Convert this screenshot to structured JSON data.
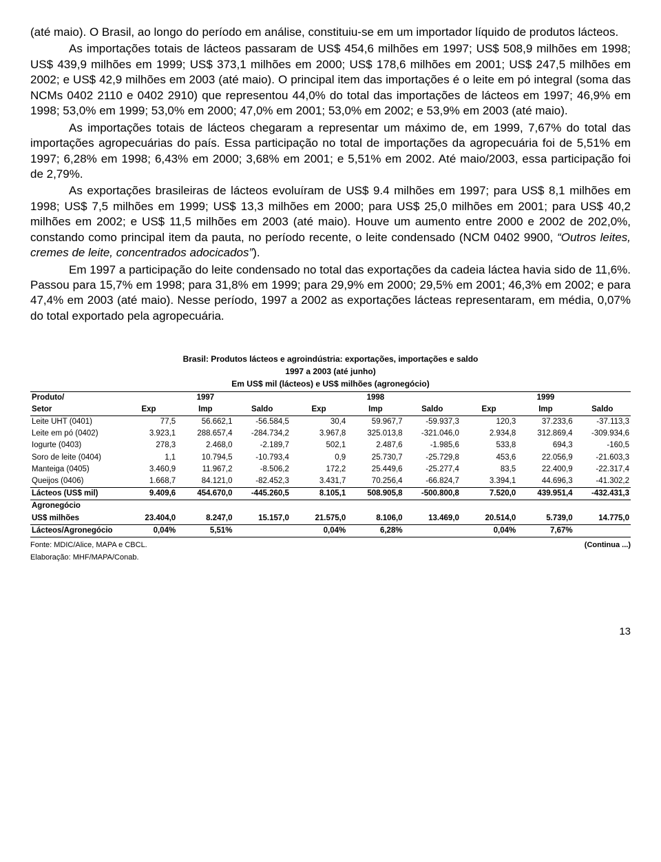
{
  "paragraphs": {
    "p1": "(até maio). O Brasil, ao longo do período em análise, constituiu-se em um importador líquido de produtos lácteos.",
    "p2": "As importações totais de lácteos passaram de US$ 454,6 milhões em 1997; US$ 508,9 milhões em 1998; US$ 439,9 milhões em 1999; US$ 373,1 milhões em 2000; US$ 178,6 milhões em 2001; US$ 247,5 milhões em 2002; e US$ 42,9 milhões em 2003 (até maio).  O principal item das importações é o leite em pó integral (soma das NCMs 0402 2110 e 0402 2910) que  representou 44,0% do total das importações de lácteos em 1997; 46,9% em 1998; 53,0% em 1999; 53,0% em 2000; 47,0% em 2001; 53,0% em 2002; e 53,9% em 2003 (até maio).",
    "p3": "As importações totais de lácteos chegaram a representar um máximo de, em 1999, 7,67% do total das importações agropecuárias do país. Essa participação no total de importações da agropecuária foi de 5,51% em 1997; 6,28% em 1998; 6,43% em 2000; 3,68% em 2001; e 5,51% em 2002. Até maio/2003, essa participação foi de 2,79%.",
    "p4a": "As exportações brasileiras de lácteos evoluíram de US$ 9.4 milhões em 1997; para US$ 8,1 milhões em 1998; US$ 7,5 milhões em 1999; US$ 13,3 milhões em 2000; para US$ 25,0 milhões em 2001;  para US$ 40,2 milhões em 2002; e US$ 11,5 milhões em 2003 (até maio). Houve um aumento entre 2000 e 2002 de 202,0%, constando como principal item da pauta, no período recente, o leite condensado (NCM 0402 9900, ",
    "p4b": "“Outros leites, cremes de leite, concentrados adocicados”",
    "p4c": ").",
    "p5": "Em 1997 a participação do leite condensado no total das exportações da cadeia láctea havia sido  de 11,6%. Passou para 15,7% em 1998; para 31,8% em 1999; para 29,9% em 2000;  29,5% em 2001;  46,3% em 2002; e para 47,4% em 2003 (até maio). Nesse período, 1997 a 2002 as exportações lácteas representaram, em média, 0,07% do total exportado pela agropecuária."
  },
  "table": {
    "title": "Brasil: Produtos lácteos e agroindústria: exportações, importações e saldo",
    "period": "1997 a 2003 (até junho)",
    "unit": "Em US$ mil (lácteos) e US$ milhões (agronegócio)",
    "head_prod1": "Produto/",
    "head_prod2": "Setor",
    "years": [
      "1997",
      "1998",
      "1999"
    ],
    "cols": [
      "Exp",
      "Imp",
      "Saldo"
    ],
    "rows": [
      {
        "label": "Leite UHT (0401)",
        "v": [
          "77,5",
          "56.662,1",
          "-56.584,5",
          "30,4",
          "59.967,7",
          "-59.937,3",
          "120,3",
          "37.233,6",
          "-37.113,3"
        ]
      },
      {
        "label": "Leite em pó (0402)",
        "v": [
          "3.923,1",
          "288.657,4",
          "-284.734,2",
          "3.967,8",
          "325.013,8",
          "-321.046,0",
          "2.934,8",
          "312.869,4",
          "-309.934,6"
        ]
      },
      {
        "label": "Iogurte (0403)",
        "v": [
          "278,3",
          "2.468,0",
          "-2.189,7",
          "502,1",
          "2.487,6",
          "-1.985,6",
          "533,8",
          "694,3",
          "-160,5"
        ]
      },
      {
        "label": "Soro de leite (0404)",
        "v": [
          "1,1",
          "10.794,5",
          "-10.793,4",
          "0,9",
          "25.730,7",
          "-25.729,8",
          "453,6",
          "22.056,9",
          "-21.603,3"
        ]
      },
      {
        "label": "Manteiga (0405)",
        "v": [
          "3.460,9",
          "11.967,2",
          "-8.506,2",
          "172,2",
          "25.449,6",
          "-25.277,4",
          "83,5",
          "22.400,9",
          "-22.317,4"
        ]
      },
      {
        "label": "Queijos (0406)",
        "v": [
          "1.668,7",
          "84.121,0",
          "-82.452,3",
          "3.431,7",
          "70.256,4",
          "-66.824,7",
          "3.394,1",
          "44.696,3",
          "-41.302,2"
        ]
      }
    ],
    "lacteos": {
      "label": "Lácteos (US$ mil)",
      "v": [
        "9.409,6",
        "454.670,0",
        "-445.260,5",
        "8.105,1",
        "508.905,8",
        "-500.800,8",
        "7.520,0",
        "439.951,4",
        "-432.431,3"
      ]
    },
    "agro1": "Agronegócio",
    "agro2": {
      "label": "US$ milhões",
      "v": [
        "23.404,0",
        "8.247,0",
        "15.157,0",
        "21.575,0",
        "8.106,0",
        "13.469,0",
        "20.514,0",
        "5.739,0",
        "14.775,0"
      ]
    },
    "ratio": {
      "label": "Lácteos/Agronegócio",
      "v": [
        "0,04%",
        "5,51%",
        "",
        "0,04%",
        "6,28%",
        "",
        "0,04%",
        "7,67%",
        ""
      ]
    },
    "fonte": "Fonte:  MDIC/Alice, MAPA e CBCL.",
    "continua": "(Continua ...)",
    "elab": "Elaboração: MHF/MAPA/Conab."
  },
  "pagenum": "13"
}
